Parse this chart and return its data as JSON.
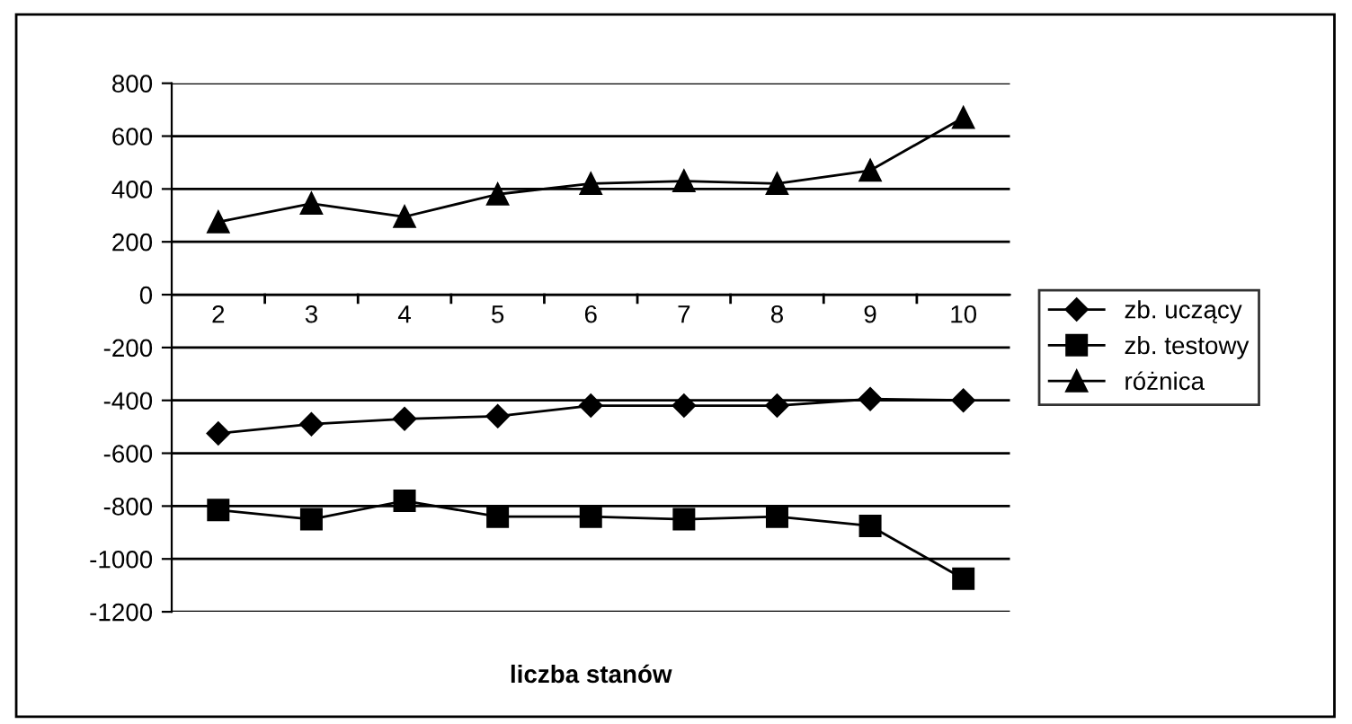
{
  "chart_data": {
    "type": "line",
    "xlabel": "liczba stanów",
    "categories": [
      "2",
      "3",
      "4",
      "5",
      "6",
      "7",
      "8",
      "9",
      "10"
    ],
    "series": [
      {
        "name": "zb. uczący",
        "color": "#000000",
        "marker": "diamond",
        "values": [
          -525,
          -490,
          -470,
          -460,
          -420,
          -420,
          -420,
          -395,
          -400
        ]
      },
      {
        "name": "zb. testowy",
        "color": "#000000",
        "marker": "square",
        "values": [
          -815,
          -850,
          -780,
          -840,
          -840,
          -850,
          -840,
          -875,
          -1075
        ]
      },
      {
        "name": "różnica",
        "color": "#000000",
        "marker": "triangle",
        "values": [
          275,
          345,
          295,
          380,
          420,
          430,
          420,
          470,
          670
        ]
      }
    ],
    "ylim": [
      -1200,
      800
    ],
    "yticks": [
      -1200,
      -1000,
      -800,
      -600,
      -400,
      -200,
      0,
      200,
      400,
      600,
      800
    ],
    "grid": "y",
    "legend": "right",
    "line_style": "solid"
  }
}
